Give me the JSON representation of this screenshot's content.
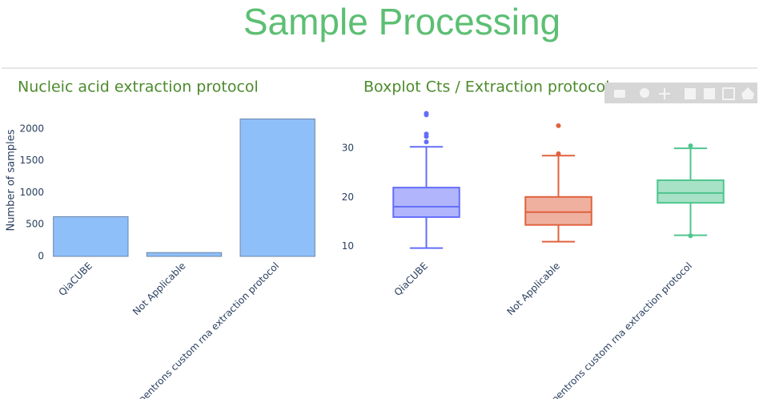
{
  "title": "Sample Processing",
  "chart_data": [
    {
      "type": "bar",
      "title": "Nucleic acid extraction protocol",
      "y_label": "Number of samples",
      "categories": [
        "QiaCUBE",
        "Not Applicable",
        "Opentrons custom rna extraction protocol"
      ],
      "values": [
        623,
        60,
        2156
      ],
      "color": "#8fbff9",
      "ylim": [
        0,
        2263
      ],
      "yticks": [
        0,
        500,
        1000,
        1500,
        2000
      ]
    },
    {
      "type": "box",
      "title": "Boxplot Cts / Extraction protocol",
      "categories": [
        "QiaCUBE",
        "Not Applicable",
        "Opentrons custom rna extraction protocol"
      ],
      "colors": [
        "#636efa",
        "#e0623f",
        "#4fc58e"
      ],
      "boxes": [
        {
          "min": 9.7,
          "q1": 16.0,
          "median": 18.1,
          "q3": 22.0,
          "max": 30.3,
          "outliers": [
            37.1,
            36.8,
            32.9,
            32.4,
            31.3
          ]
        },
        {
          "min": 11.0,
          "q1": 14.4,
          "median": 17.0,
          "q3": 20.1,
          "max": 28.5,
          "outliers": [
            34.6,
            28.9
          ]
        },
        {
          "min": 12.3,
          "q1": 18.9,
          "median": 20.9,
          "q3": 23.5,
          "max": 30.0,
          "outliers": [
            30.5,
            12.2
          ]
        }
      ],
      "ylim": [
        8,
        38
      ],
      "yticks": [
        10,
        20,
        30
      ]
    }
  ]
}
